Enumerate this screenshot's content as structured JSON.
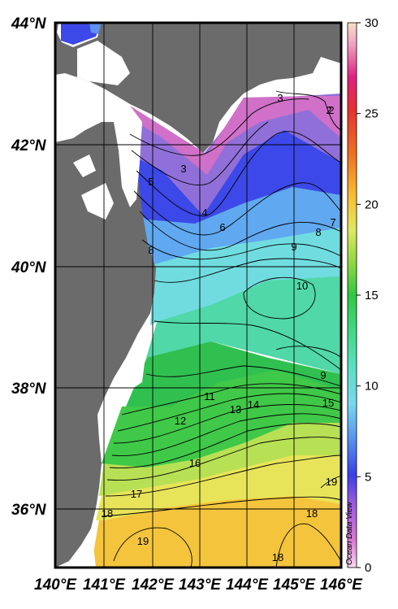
{
  "map": {
    "lat_labels": [
      "44°N",
      "42°N",
      "40°N",
      "38°N",
      "36°N"
    ],
    "lon_labels": [
      "140°E",
      "141°E",
      "142°E",
      "143°E",
      "144°E",
      "145°E",
      "146°E"
    ],
    "lat_range": [
      35,
      44
    ],
    "lon_range": [
      140,
      146
    ],
    "land_color": "#6b6b6b",
    "no_data_color": "#ffffff"
  },
  "colorbar": {
    "ticks": [
      "0",
      "5",
      "10",
      "15",
      "20",
      "25",
      "30"
    ],
    "range": [
      0,
      30
    ],
    "credit": "Ocean Data View"
  },
  "contours": {
    "labels": [
      "3",
      "2",
      "3",
      "5",
      "4",
      "6",
      "7",
      "8",
      "8",
      "9",
      "10",
      "9",
      "11",
      "12",
      "13",
      "14",
      "15",
      "16",
      "17",
      "18",
      "19",
      "19",
      "18",
      "18",
      "2"
    ]
  }
}
